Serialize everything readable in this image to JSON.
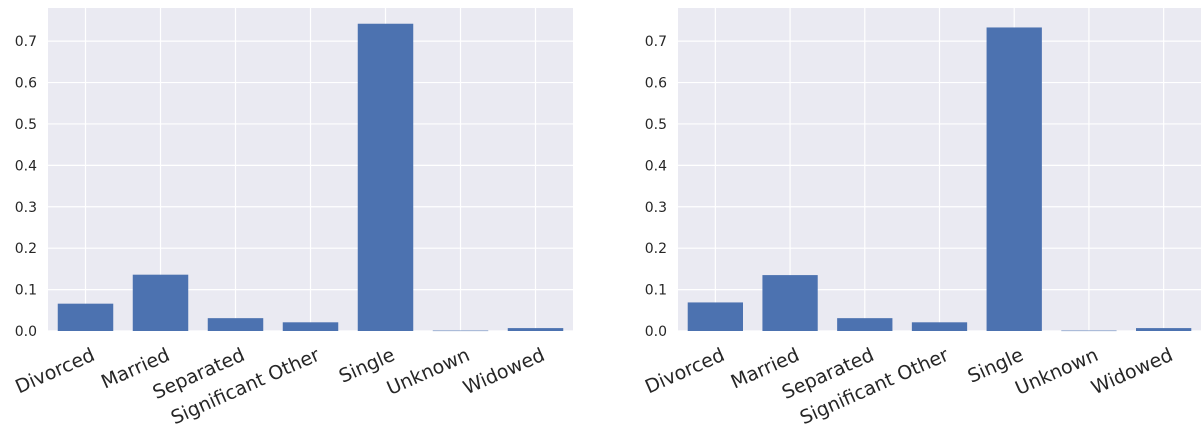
{
  "chart_data": [
    {
      "type": "bar",
      "categories": [
        "Divorced",
        "Married",
        "Separated",
        "Significant Other",
        "Single",
        "Unknown",
        "Widowed"
      ],
      "values": [
        0.066,
        0.136,
        0.031,
        0.021,
        0.742,
        0.001,
        0.007
      ],
      "ylim": [
        0,
        0.78
      ],
      "yticks": [
        "0.0",
        "0.1",
        "0.2",
        "0.3",
        "0.4",
        "0.5",
        "0.6",
        "0.7"
      ],
      "grid": true,
      "style": {
        "background": "#eaeaf2",
        "grid": "#ffffff",
        "bar": "#4c72b0"
      }
    },
    {
      "type": "bar",
      "categories": [
        "Divorced",
        "Married",
        "Separated",
        "Significant Other",
        "Single",
        "Unknown",
        "Widowed"
      ],
      "values": [
        0.069,
        0.135,
        0.031,
        0.021,
        0.733,
        0.001,
        0.007
      ],
      "ylim": [
        0,
        0.78
      ],
      "yticks": [
        "0.0",
        "0.1",
        "0.2",
        "0.3",
        "0.4",
        "0.5",
        "0.6",
        "0.7"
      ],
      "grid": true,
      "style": {
        "background": "#eaeaf2",
        "grid": "#ffffff",
        "bar": "#4c72b0"
      }
    }
  ]
}
